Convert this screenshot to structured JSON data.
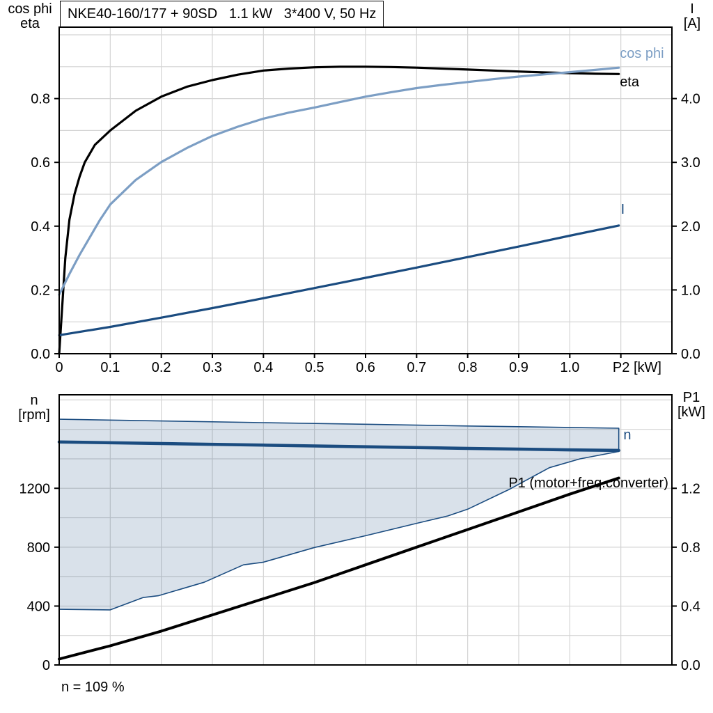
{
  "title": "NKE40-160/177 + 90SD   1.1 kW   3*400 V, 50 Hz",
  "footer": {
    "speed_note": "n = 109 %"
  },
  "axis_corner_labels": {
    "top_left_1": "cos phi",
    "top_left_2": "eta",
    "top_right_1": "I",
    "top_right_2": "[A]",
    "bottom_left_1": "n",
    "bottom_left_2": "[rpm]",
    "bottom_right_1": "P1",
    "bottom_right_2": "[kW]"
  },
  "colors": {
    "black": "#000000",
    "dark_blue": "#1B4C80",
    "light_blue": "#7C9EC4",
    "area_fill": "rgba(27,76,128,0.17)",
    "grid": "#D4D4D4",
    "frame": "#000000"
  },
  "chart_data": [
    {
      "name": "efficiency-current-chart",
      "type": "line",
      "title": "NKE40-160/177 + 90SD   1.1 kW   3*400 V, 50 Hz",
      "xlabel": "P2 [kW]",
      "x": {
        "min": 0,
        "max": 1.2,
        "grid": [
          0.1,
          0.2,
          0.3,
          0.4,
          0.5,
          0.6,
          0.7,
          0.8,
          0.9,
          1.0,
          1.1
        ],
        "ticks": [
          {
            "v": 0,
            "t": "0"
          },
          {
            "v": 0.1,
            "t": "0.1"
          },
          {
            "v": 0.2,
            "t": "0.2"
          },
          {
            "v": 0.3,
            "t": "0.3"
          },
          {
            "v": 0.4,
            "t": "0.4"
          },
          {
            "v": 0.5,
            "t": "0.5"
          },
          {
            "v": 0.6,
            "t": "0.6"
          },
          {
            "v": 0.7,
            "t": "0.7"
          },
          {
            "v": 0.8,
            "t": "0.8"
          },
          {
            "v": 0.9,
            "t": "0.9"
          },
          {
            "v": 1.0,
            "t": "1.0"
          },
          {
            "v": 1.1,
            "t": ""
          }
        ],
        "unit_label": {
          "v": 1.084,
          "t": "P2 [kW]"
        }
      },
      "y_left": {
        "label": "cos phi / eta",
        "min": 0,
        "max": 1.024,
        "grid": [
          0.1,
          0.2,
          0.3,
          0.4,
          0.5,
          0.6,
          0.7,
          0.8,
          0.9,
          1.0
        ],
        "ticks": [
          {
            "v": 0,
            "t": "0.0"
          },
          {
            "v": 0.2,
            "t": "0.2"
          },
          {
            "v": 0.4,
            "t": "0.4"
          },
          {
            "v": 0.6,
            "t": "0.6"
          },
          {
            "v": 0.8,
            "t": "0.8"
          }
        ]
      },
      "y_right": {
        "label": "I [A]",
        "min": 0,
        "max": 5.12,
        "ticks": [
          {
            "v": 0,
            "t": "0.0"
          },
          {
            "v": 1,
            "t": "1.0"
          },
          {
            "v": 2,
            "t": "2.0"
          },
          {
            "v": 3,
            "t": "3.0"
          },
          {
            "v": 4,
            "t": "4.0"
          }
        ]
      },
      "series": [
        {
          "name": "eta",
          "axis": "y_left",
          "color": "black",
          "width": 3.2,
          "points": [
            [
              0,
              0
            ],
            [
              0.012,
              0.3
            ],
            [
              0.02,
              0.42
            ],
            [
              0.03,
              0.5
            ],
            [
              0.04,
              0.555
            ],
            [
              0.05,
              0.6
            ],
            [
              0.07,
              0.655
            ],
            [
              0.1,
              0.7
            ],
            [
              0.15,
              0.762
            ],
            [
              0.2,
              0.806
            ],
            [
              0.25,
              0.837
            ],
            [
              0.3,
              0.858
            ],
            [
              0.35,
              0.875
            ],
            [
              0.4,
              0.888
            ],
            [
              0.45,
              0.894
            ],
            [
              0.5,
              0.898
            ],
            [
              0.55,
              0.9
            ],
            [
              0.6,
              0.9
            ],
            [
              0.65,
              0.899
            ],
            [
              0.7,
              0.897
            ],
            [
              0.75,
              0.894
            ],
            [
              0.8,
              0.891
            ],
            [
              0.85,
              0.888
            ],
            [
              0.9,
              0.885
            ],
            [
              0.95,
              0.882
            ],
            [
              1.0,
              0.88
            ],
            [
              1.05,
              0.878
            ],
            [
              1.096,
              0.877
            ]
          ]
        },
        {
          "name": "cos phi",
          "axis": "y_left",
          "color": "light_blue",
          "width": 3.2,
          "points": [
            [
              0,
              0.185
            ],
            [
              0.02,
              0.25
            ],
            [
              0.04,
              0.31
            ],
            [
              0.06,
              0.365
            ],
            [
              0.08,
              0.42
            ],
            [
              0.1,
              0.468
            ],
            [
              0.15,
              0.545
            ],
            [
              0.2,
              0.601
            ],
            [
              0.25,
              0.645
            ],
            [
              0.3,
              0.683
            ],
            [
              0.35,
              0.712
            ],
            [
              0.4,
              0.737
            ],
            [
              0.45,
              0.756
            ],
            [
              0.5,
              0.772
            ],
            [
              0.55,
              0.789
            ],
            [
              0.6,
              0.806
            ],
            [
              0.65,
              0.82
            ],
            [
              0.7,
              0.833
            ],
            [
              0.75,
              0.843
            ],
            [
              0.8,
              0.852
            ],
            [
              0.85,
              0.861
            ],
            [
              0.9,
              0.869
            ],
            [
              0.95,
              0.876
            ],
            [
              1.0,
              0.883
            ],
            [
              1.05,
              0.89
            ],
            [
              1.096,
              0.897
            ]
          ]
        },
        {
          "name": "I",
          "axis": "y_right",
          "color": "dark_blue",
          "width": 3.2,
          "points": [
            [
              0,
              0.29
            ],
            [
              0.1,
              0.42
            ],
            [
              0.2,
              0.565
            ],
            [
              0.3,
              0.715
            ],
            [
              0.4,
              0.87
            ],
            [
              0.5,
              1.03
            ],
            [
              0.6,
              1.19
            ],
            [
              0.7,
              1.35
            ],
            [
              0.8,
              1.515
            ],
            [
              0.9,
              1.68
            ],
            [
              1.0,
              1.85
            ],
            [
              1.096,
              2.01
            ]
          ]
        }
      ],
      "annotations": [
        {
          "t": "cos phi",
          "axis": "y_left",
          "x": 1.098,
          "y": 0.943,
          "color": "light_blue",
          "anchor": "start"
        },
        {
          "t": "eta",
          "axis": "y_left",
          "x": 1.098,
          "y": 0.854,
          "color": "black",
          "anchor": "start"
        },
        {
          "t": "I",
          "axis": "y_right",
          "x": 1.1,
          "y": 2.27,
          "color": "dark_blue",
          "anchor": "start"
        }
      ]
    },
    {
      "name": "speed-power-chart",
      "type": "line+area",
      "xlabel": "",
      "x": {
        "min": 0,
        "max": 1.2,
        "grid": [
          0.1,
          0.2,
          0.3,
          0.4,
          0.5,
          0.6,
          0.7,
          0.8,
          0.9,
          1.0,
          1.1
        ],
        "ticks": []
      },
      "y_left": {
        "label": "n [rpm]",
        "min": 0,
        "max": 1835,
        "grid": [
          200,
          400,
          600,
          800,
          1000,
          1200,
          1400,
          1600,
          1800
        ],
        "ticks": [
          {
            "v": 0,
            "t": "0"
          },
          {
            "v": 400,
            "t": "400"
          },
          {
            "v": 800,
            "t": "800"
          },
          {
            "v": 1200,
            "t": "1200"
          }
        ]
      },
      "y_right": {
        "label": "P1 [kW]",
        "min": 0,
        "max": 1.835,
        "ticks": [
          {
            "v": 0,
            "t": "0.0"
          },
          {
            "v": 0.4,
            "t": "0.4"
          },
          {
            "v": 0.8,
            "t": "0.8"
          },
          {
            "v": 1.2,
            "t": "1.2"
          }
        ]
      },
      "area": {
        "name": "speed-control-range",
        "axis": "y_left",
        "top": [
          [
            0,
            1669
          ],
          [
            0.2,
            1657
          ],
          [
            0.4,
            1646
          ],
          [
            0.6,
            1635
          ],
          [
            0.8,
            1623
          ],
          [
            1.0,
            1613
          ],
          [
            1.096,
            1608
          ]
        ],
        "bottom": [
          [
            0,
            378
          ],
          [
            0.1,
            374
          ],
          [
            0.164,
            458
          ],
          [
            0.194,
            470
          ],
          [
            0.284,
            562
          ],
          [
            0.361,
            680
          ],
          [
            0.4,
            698
          ],
          [
            0.5,
            798
          ],
          [
            0.6,
            878
          ],
          [
            0.7,
            962
          ],
          [
            0.761,
            1012
          ],
          [
            0.8,
            1058
          ],
          [
            0.88,
            1190
          ],
          [
            0.96,
            1340
          ],
          [
            1.02,
            1400
          ],
          [
            1.096,
            1450
          ]
        ]
      },
      "series": [
        {
          "name": "n",
          "axis": "y_left",
          "color": "dark_blue",
          "width": 4.5,
          "points": [
            [
              0,
              1515
            ],
            [
              0.2,
              1504
            ],
            [
              0.4,
              1493
            ],
            [
              0.6,
              1482
            ],
            [
              0.8,
              1471
            ],
            [
              1.0,
              1461
            ],
            [
              1.096,
              1457
            ]
          ]
        },
        {
          "name": "P1 (motor+freq.converter)",
          "axis": "y_right",
          "color": "black",
          "width": 4,
          "points": [
            [
              0,
              0.04
            ],
            [
              0.1,
              0.13
            ],
            [
              0.2,
              0.23
            ],
            [
              0.3,
              0.34
            ],
            [
              0.4,
              0.45
            ],
            [
              0.5,
              0.56
            ],
            [
              0.6,
              0.68
            ],
            [
              0.7,
              0.8
            ],
            [
              0.8,
              0.92
            ],
            [
              0.9,
              1.04
            ],
            [
              1.0,
              1.16
            ],
            [
              1.096,
              1.27
            ]
          ]
        }
      ],
      "annotations": [
        {
          "t": "n",
          "axis": "y_left",
          "x": 1.105,
          "y": 1565,
          "color": "dark_blue",
          "anchor": "start"
        },
        {
          "t": "P1 (motor+freq.converter)",
          "axis": "y_right",
          "x": 1.193,
          "y": 1.24,
          "color": "black",
          "anchor": "end"
        }
      ]
    }
  ]
}
